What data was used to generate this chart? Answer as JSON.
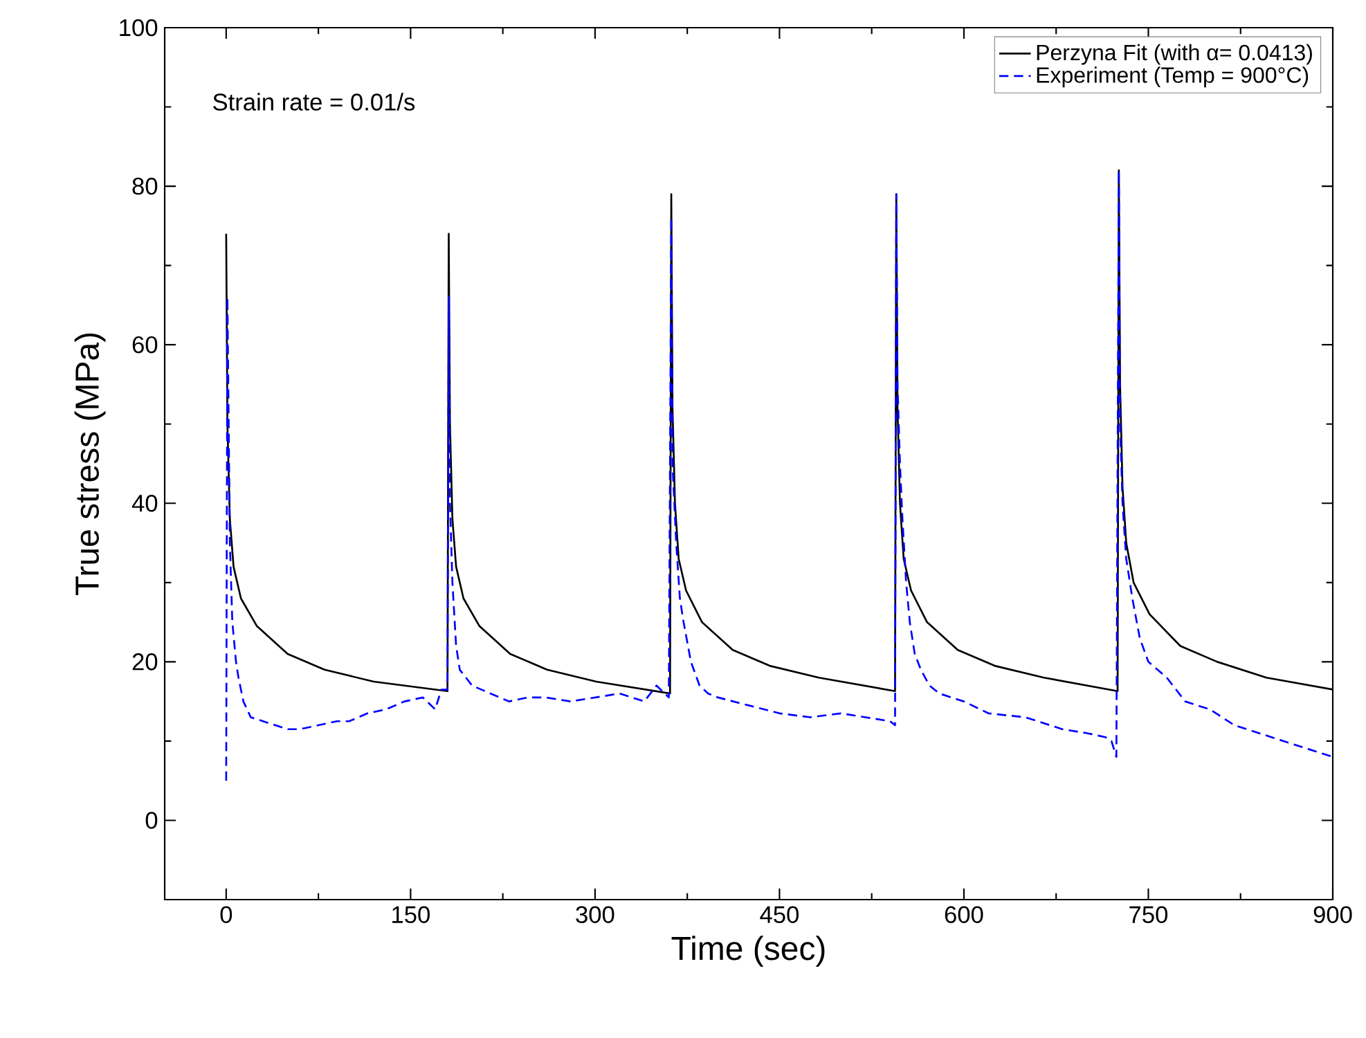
{
  "chart_data": {
    "type": "line",
    "xlabel": "Time (sec)",
    "ylabel": "True stress (MPa)",
    "xlim": [
      -50,
      900
    ],
    "ylim": [
      -10,
      100
    ],
    "xticks": [
      0,
      150,
      300,
      450,
      600,
      750,
      900
    ],
    "yticks": [
      0,
      20,
      40,
      60,
      80,
      100
    ],
    "legend": "top right",
    "marker": "none",
    "annotations": [
      "Strain rate = 0.01/s"
    ],
    "series": [
      {
        "name": "Perzyna Fit (with α= 0.0413)",
        "color": "#000000",
        "line_style": "solid",
        "x": [
          0,
          1,
          3,
          6,
          12,
          25,
          50,
          80,
          120,
          180,
          181,
          182,
          184,
          187,
          193,
          206,
          231,
          261,
          301,
          361,
          362,
          363,
          365,
          368,
          374,
          387,
          412,
          442,
          482,
          544,
          545,
          546,
          548,
          551,
          557,
          570,
          595,
          625,
          665,
          725,
          726,
          727,
          729,
          732,
          738,
          751,
          776,
          806,
          846,
          900
        ],
        "values": [
          74,
          50,
          38,
          32,
          28,
          24.5,
          21,
          19,
          17.5,
          16.3,
          74,
          50,
          38,
          32,
          28,
          24.5,
          21,
          19,
          17.5,
          16,
          79,
          52,
          40,
          33,
          29,
          25,
          21.5,
          19.5,
          18,
          16.3,
          79,
          52,
          40,
          33,
          29,
          25,
          21.5,
          19.5,
          18,
          16.3,
          82,
          55,
          42,
          35,
          30,
          26,
          22,
          20,
          18,
          16.5
        ]
      },
      {
        "name": "Experiment (Temp = 900°C)",
        "color": "#0000ff",
        "line_style": "dashed",
        "x": [
          0,
          1,
          3,
          5,
          8,
          10,
          14,
          20,
          30,
          40,
          50,
          60,
          75,
          90,
          100,
          115,
          130,
          145,
          160,
          170,
          175,
          180,
          181,
          182,
          184,
          187,
          190,
          195,
          200,
          215,
          230,
          245,
          260,
          280,
          300,
          320,
          340,
          350,
          360,
          362,
          363,
          366,
          369,
          372,
          378,
          385,
          392,
          400,
          425,
          450,
          475,
          500,
          520,
          540,
          544,
          545,
          546,
          548,
          550,
          553,
          556,
          560,
          565,
          572,
          580,
          600,
          620,
          650,
          680,
          700,
          715,
          720,
          724,
          726,
          727,
          729,
          732,
          737,
          743,
          750,
          765,
          780,
          800,
          820,
          840,
          860,
          880,
          900
        ],
        "values": [
          5,
          66,
          35,
          25,
          20,
          18,
          15,
          13,
          12.5,
          12,
          11.5,
          11.5,
          12,
          12.5,
          12.5,
          13.5,
          14,
          15,
          15.5,
          14,
          16.5,
          16.5,
          66,
          40,
          30,
          22,
          19,
          18,
          17,
          16,
          15,
          15.5,
          15.5,
          15,
          15.5,
          16,
          15,
          17,
          15.5,
          76,
          45,
          35,
          28,
          25,
          20,
          17,
          16,
          15.5,
          14.5,
          13.5,
          13,
          13.5,
          13,
          12.5,
          12,
          79,
          55,
          45,
          38,
          30,
          25,
          21,
          19,
          17,
          16,
          15,
          13.5,
          13,
          11.5,
          11,
          10.5,
          10,
          8,
          82,
          50,
          40,
          33,
          28,
          23,
          20,
          18,
          15,
          14,
          12,
          11,
          10,
          9,
          8
        ]
      }
    ]
  }
}
